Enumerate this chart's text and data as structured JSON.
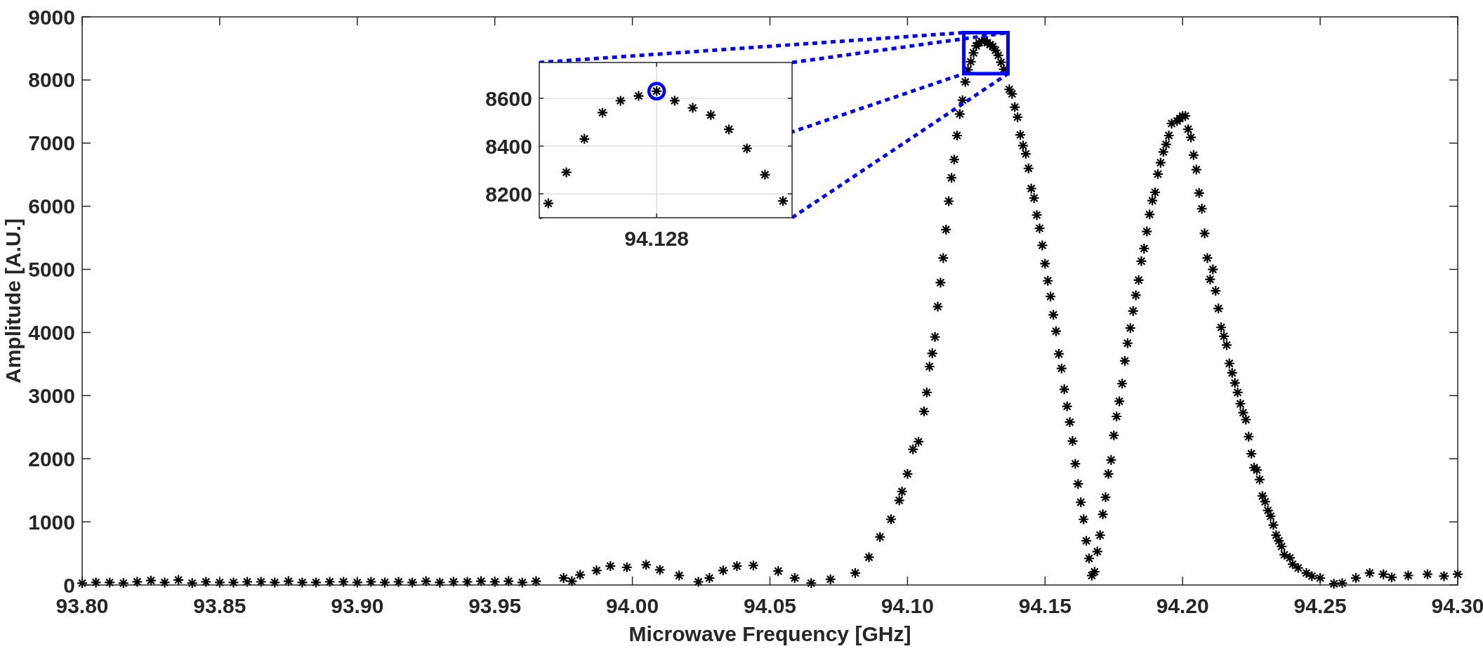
{
  "chart_data": [
    {
      "type": "scatter",
      "xlabel": "Microwave Frequency [GHz]",
      "ylabel": "Amplitude [A.U.]",
      "xlim": [
        93.8,
        94.3
      ],
      "ylim": [
        0,
        9000
      ],
      "xticks": [
        {
          "value": 93.8,
          "label": "93.80"
        },
        {
          "value": 93.85,
          "label": "93.85"
        },
        {
          "value": 93.9,
          "label": "93.90"
        },
        {
          "value": 93.95,
          "label": "93.95"
        },
        {
          "value": 94.0,
          "label": "94.00"
        },
        {
          "value": 94.05,
          "label": "94.05"
        },
        {
          "value": 94.1,
          "label": "94.10"
        },
        {
          "value": 94.15,
          "label": "94.15"
        },
        {
          "value": 94.2,
          "label": "94.20"
        },
        {
          "value": 94.25,
          "label": "94.25"
        },
        {
          "value": 94.3,
          "label": "94.30"
        }
      ],
      "yticks": [
        0,
        1000,
        2000,
        3000,
        4000,
        5000,
        6000,
        7000,
        8000,
        9000
      ],
      "marker": "cross",
      "series": [
        {
          "color": "#000000",
          "x": [
            93.8,
            93.805,
            93.81,
            93.815,
            93.82,
            93.825,
            93.83,
            93.835,
            93.84,
            93.845,
            93.85,
            93.855,
            93.86,
            93.865,
            93.87,
            93.875,
            93.88,
            93.885,
            93.89,
            93.895,
            93.9,
            93.905,
            93.91,
            93.915,
            93.92,
            93.925,
            93.93,
            93.935,
            93.94,
            93.945,
            93.95,
            93.955,
            93.96,
            93.965,
            93.975,
            93.978,
            93.981,
            93.987,
            93.992,
            93.998,
            94.005,
            94.01,
            94.017,
            94.024,
            94.028,
            94.033,
            94.038,
            94.044,
            94.053,
            94.059,
            94.065,
            94.072,
            94.081,
            94.086,
            94.09,
            94.094,
            94.097,
            94.098,
            94.1,
            94.102,
            94.104,
            94.106,
            94.107,
            94.108,
            94.109,
            94.11,
            94.111,
            94.112,
            94.113,
            94.114,
            94.115,
            94.116,
            94.117,
            94.118,
            94.119,
            94.12,
            94.121,
            94.122,
            94.123,
            94.124,
            94.125,
            94.126,
            94.127,
            94.128,
            94.129,
            94.13,
            94.131,
            94.132,
            94.133,
            94.134,
            94.135,
            94.137,
            94.138,
            94.139,
            94.14,
            94.141,
            94.142,
            94.143,
            94.144,
            94.145,
            94.146,
            94.147,
            94.148,
            94.149,
            94.15,
            94.151,
            94.152,
            94.153,
            94.154,
            94.155,
            94.156,
            94.157,
            94.158,
            94.159,
            94.16,
            94.161,
            94.162,
            94.163,
            94.164,
            94.165,
            94.166,
            94.167,
            94.168,
            94.169,
            94.17,
            94.171,
            94.172,
            94.173,
            94.174,
            94.175,
            94.176,
            94.177,
            94.178,
            94.179,
            94.18,
            94.181,
            94.182,
            94.183,
            94.184,
            94.185,
            94.186,
            94.187,
            94.188,
            94.189,
            94.19,
            94.191,
            94.192,
            94.193,
            94.194,
            94.195,
            94.196,
            94.198,
            94.199,
            94.2,
            94.201,
            94.202,
            94.203,
            94.204,
            94.205,
            94.206,
            94.207,
            94.208,
            94.209,
            94.21,
            94.211,
            94.212,
            94.213,
            94.214,
            94.215,
            94.216,
            94.217,
            94.218,
            94.219,
            94.22,
            94.221,
            94.222,
            94.223,
            94.224,
            94.225,
            94.226,
            94.227,
            94.228,
            94.229,
            94.23,
            94.231,
            94.232,
            94.233,
            94.234,
            94.235,
            94.236,
            94.237,
            94.239,
            94.24,
            94.242,
            94.245,
            94.247,
            94.25,
            94.255,
            94.258,
            94.263,
            94.268,
            94.273,
            94.276,
            94.282,
            94.289,
            94.295,
            94.3
          ],
          "values": [
            30,
            40,
            40,
            30,
            50,
            70,
            40,
            80,
            30,
            50,
            40,
            40,
            50,
            50,
            40,
            60,
            40,
            40,
            50,
            50,
            40,
            50,
            40,
            50,
            40,
            60,
            40,
            50,
            50,
            60,
            50,
            60,
            40,
            60,
            110,
            60,
            160,
            230,
            300,
            280,
            320,
            240,
            150,
            50,
            110,
            230,
            300,
            310,
            220,
            110,
            30,
            90,
            190,
            440,
            760,
            1040,
            1340,
            1480,
            1760,
            2150,
            2270,
            2750,
            3050,
            3460,
            3670,
            3930,
            4410,
            4790,
            5180,
            5630,
            6080,
            6450,
            6740,
            7120,
            7460,
            7680,
            7970,
            8160,
            8290,
            8430,
            8540,
            8590,
            8610,
            8630,
            8590,
            8560,
            8530,
            8470,
            8390,
            8280,
            8170,
            7850,
            7780,
            7570,
            7410,
            7130,
            6960,
            6830,
            6600,
            6280,
            6130,
            5860,
            5650,
            5380,
            5090,
            4820,
            4570,
            4280,
            4020,
            3660,
            3430,
            3100,
            2830,
            2580,
            2280,
            1920,
            1600,
            1310,
            1040,
            700,
            420,
            150,
            210,
            530,
            790,
            1120,
            1390,
            1760,
            1980,
            2370,
            2670,
            2910,
            3190,
            3550,
            3830,
            4070,
            4340,
            4590,
            4830,
            5130,
            5330,
            5600,
            5870,
            6090,
            6220,
            6510,
            6690,
            6860,
            6980,
            7120,
            7310,
            7350,
            7390,
            7430,
            7430,
            7220,
            7090,
            6810,
            6580,
            6210,
            5960,
            5570,
            5180,
            4840,
            5000,
            4660,
            4380,
            4080,
            3940,
            3800,
            3510,
            3360,
            3200,
            3050,
            2870,
            2730,
            2620,
            2350,
            2080,
            1860,
            1820,
            1670,
            1410,
            1320,
            1180,
            1090,
            950,
            790,
            700,
            610,
            480,
            430,
            330,
            270,
            190,
            140,
            110,
            20,
            30,
            110,
            190,
            170,
            120,
            150,
            170,
            140,
            170
          ]
        }
      ]
    },
    {
      "type": "scatter",
      "categories": [
        null,
        null,
        null,
        null,
        null,
        null,
        "94.128",
        null,
        null,
        null,
        null,
        null,
        null,
        null
      ],
      "ylim": [
        8100,
        8750
      ],
      "yticks": [
        8200,
        8400,
        8600
      ],
      "grid": true,
      "marker": "cross",
      "series": [
        {
          "color": "#000000",
          "values": [
            8160,
            8290,
            8430,
            8540,
            8590,
            8610,
            8630,
            8590,
            8560,
            8530,
            8470,
            8390,
            8280,
            8170
          ]
        },
        {
          "color": "#0000ff",
          "marker": "circle",
          "values": [
            null,
            null,
            null,
            null,
            null,
            null,
            8630,
            null,
            null,
            null,
            null,
            null,
            null,
            null
          ]
        }
      ]
    }
  ]
}
